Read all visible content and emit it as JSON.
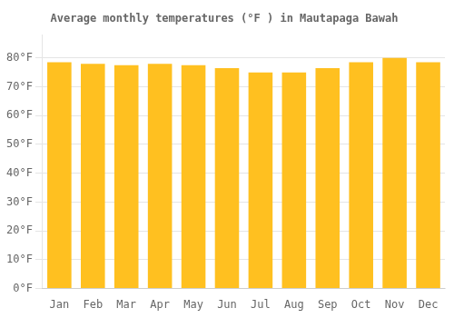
{
  "chart_data": {
    "type": "bar",
    "title": "Average monthly temperatures (°F ) in Mautapaga Bawah",
    "categories": [
      "Jan",
      "Feb",
      "Mar",
      "Apr",
      "May",
      "Jun",
      "Jul",
      "Aug",
      "Sep",
      "Oct",
      "Nov",
      "Dec"
    ],
    "values": [
      78.5,
      78.0,
      77.5,
      78.0,
      77.5,
      76.5,
      75.0,
      75.0,
      76.5,
      78.5,
      80.0,
      78.5
    ],
    "color": "#FFC020",
    "ylim": [
      0,
      88
    ],
    "yticks": [
      {
        "value": 0,
        "label": "0°F"
      },
      {
        "value": 10,
        "label": "10°F"
      },
      {
        "value": 20,
        "label": "20°F"
      },
      {
        "value": 30,
        "label": "30°F"
      },
      {
        "value": 40,
        "label": "40°F"
      },
      {
        "value": 50,
        "label": "50°F"
      },
      {
        "value": 60,
        "label": "60°F"
      },
      {
        "value": 70,
        "label": "70°F"
      },
      {
        "value": 80,
        "label": "80°F"
      }
    ],
    "grid": true
  }
}
